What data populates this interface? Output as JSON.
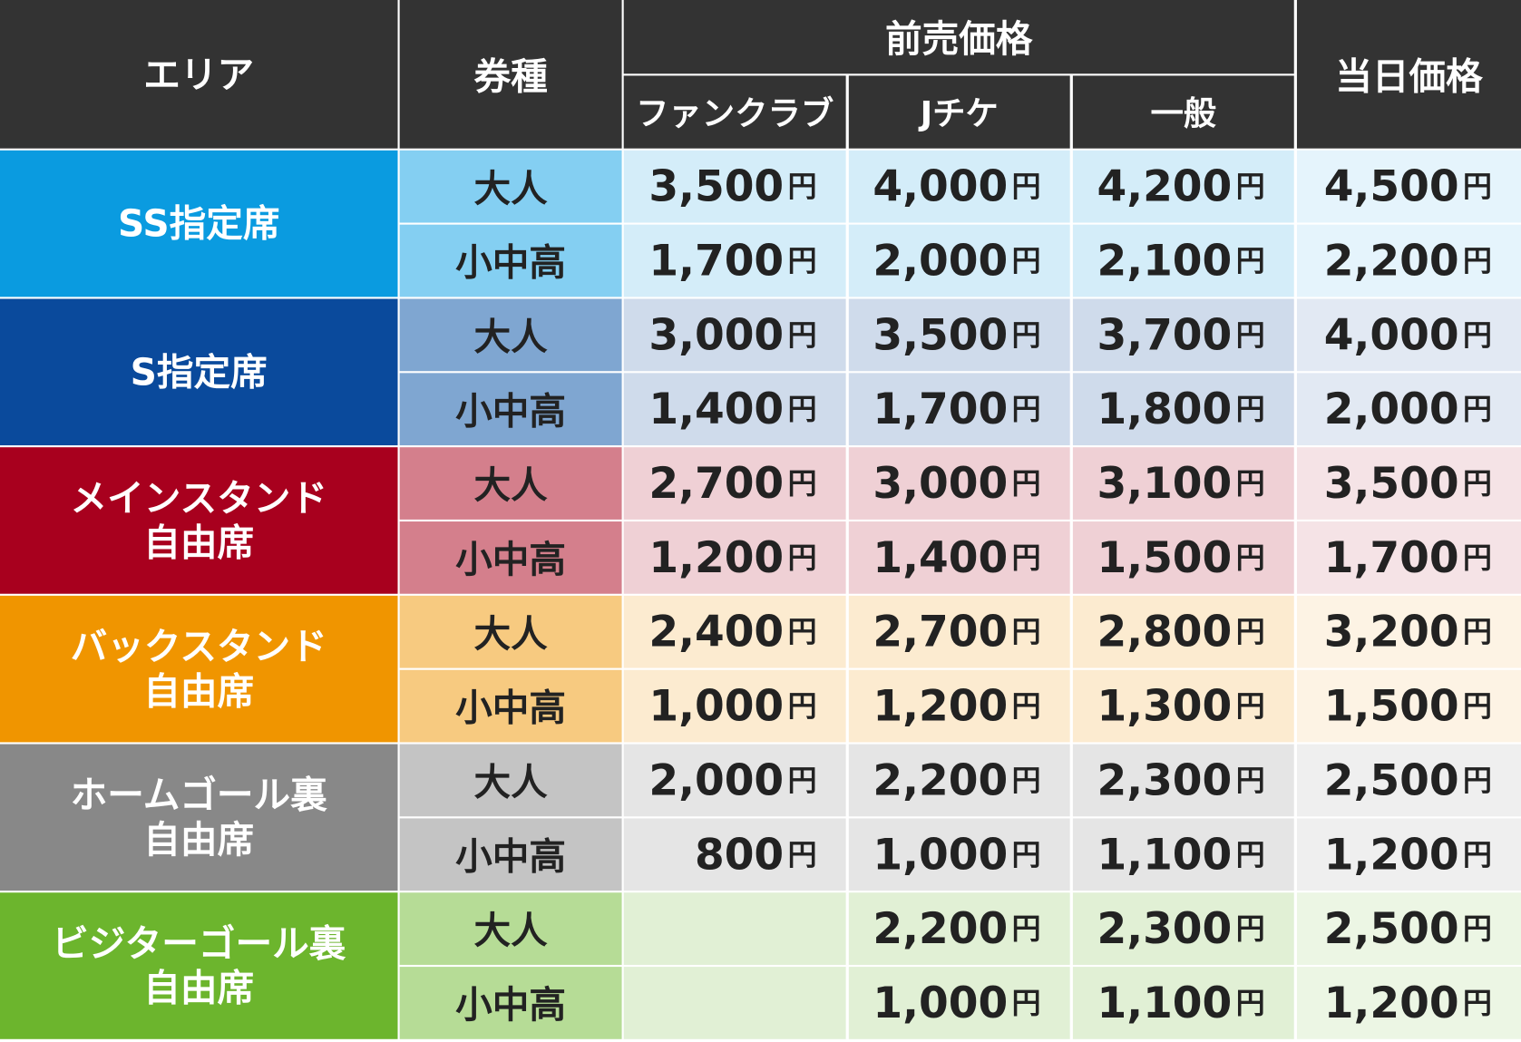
{
  "header": {
    "area": "エリア",
    "ticket_type": "券種",
    "advance": "前売価格",
    "advance_columns": [
      "ファンクラブ",
      "Jチケ",
      "一般"
    ],
    "same_day": "当日価格"
  },
  "sections": [
    {
      "area": [
        "SS指定席"
      ],
      "rows": [
        {
          "type": "大人",
          "prices": [
            {
              "price": "3,500",
              "unit": "円"
            },
            {
              "price": "4,000",
              "unit": "円"
            },
            {
              "price": "4,200",
              "unit": "円"
            },
            {
              "price": "4,500",
              "unit": "円"
            }
          ]
        },
        {
          "type": "小中高",
          "prices": [
            {
              "price": "1,700",
              "unit": "円"
            },
            {
              "price": "2,000",
              "unit": "円"
            },
            {
              "price": "2,100",
              "unit": "円"
            },
            {
              "price": "2,200",
              "unit": "円"
            }
          ]
        }
      ]
    },
    {
      "area": [
        "S指定席"
      ],
      "rows": [
        {
          "type": "大人",
          "prices": [
            {
              "price": "3,000",
              "unit": "円"
            },
            {
              "price": "3,500",
              "unit": "円"
            },
            {
              "price": "3,700",
              "unit": "円"
            },
            {
              "price": "4,000",
              "unit": "円"
            }
          ]
        },
        {
          "type": "小中高",
          "prices": [
            {
              "price": "1,400",
              "unit": "円"
            },
            {
              "price": "1,700",
              "unit": "円"
            },
            {
              "price": "1,800",
              "unit": "円"
            },
            {
              "price": "2,000",
              "unit": "円"
            }
          ]
        }
      ]
    },
    {
      "area": [
        "メインスタンド",
        "自由席"
      ],
      "rows": [
        {
          "type": "大人",
          "prices": [
            {
              "price": "2,700",
              "unit": "円"
            },
            {
              "price": "3,000",
              "unit": "円"
            },
            {
              "price": "3,100",
              "unit": "円"
            },
            {
              "price": "3,500",
              "unit": "円"
            }
          ]
        },
        {
          "type": "小中高",
          "prices": [
            {
              "price": "1,200",
              "unit": "円"
            },
            {
              "price": "1,400",
              "unit": "円"
            },
            {
              "price": "1,500",
              "unit": "円"
            },
            {
              "price": "1,700",
              "unit": "円"
            }
          ]
        }
      ]
    },
    {
      "area": [
        "バックスタンド",
        "自由席"
      ],
      "rows": [
        {
          "type": "大人",
          "prices": [
            {
              "price": "2,400",
              "unit": "円"
            },
            {
              "price": "2,700",
              "unit": "円"
            },
            {
              "price": "2,800",
              "unit": "円"
            },
            {
              "price": "3,200",
              "unit": "円"
            }
          ]
        },
        {
          "type": "小中高",
          "prices": [
            {
              "price": "1,000",
              "unit": "円"
            },
            {
              "price": "1,200",
              "unit": "円"
            },
            {
              "price": "1,300",
              "unit": "円"
            },
            {
              "price": "1,500",
              "unit": "円"
            }
          ]
        }
      ]
    },
    {
      "area": [
        "ホームゴール裏",
        "自由席"
      ],
      "rows": [
        {
          "type": "大人",
          "prices": [
            {
              "price": "2,000",
              "unit": "円"
            },
            {
              "price": "2,200",
              "unit": "円"
            },
            {
              "price": "2,300",
              "unit": "円"
            },
            {
              "price": "2,500",
              "unit": "円"
            }
          ]
        },
        {
          "type": "小中高",
          "prices": [
            {
              "price": "800",
              "unit": "円"
            },
            {
              "price": "1,000",
              "unit": "円"
            },
            {
              "price": "1,100",
              "unit": "円"
            },
            {
              "price": "1,200",
              "unit": "円"
            }
          ]
        }
      ]
    },
    {
      "area": [
        "ビジターゴール裏",
        "自由席"
      ],
      "rows": [
        {
          "type": "大人",
          "prices": [
            null,
            {
              "price": "2,200",
              "unit": "円"
            },
            {
              "price": "2,300",
              "unit": "円"
            },
            {
              "price": "2,500",
              "unit": "円"
            }
          ]
        },
        {
          "type": "小中高",
          "prices": [
            null,
            {
              "price": "1,000",
              "unit": "円"
            },
            {
              "price": "1,100",
              "unit": "円"
            },
            {
              "price": "1,200",
              "unit": "円"
            }
          ]
        }
      ]
    }
  ]
}
